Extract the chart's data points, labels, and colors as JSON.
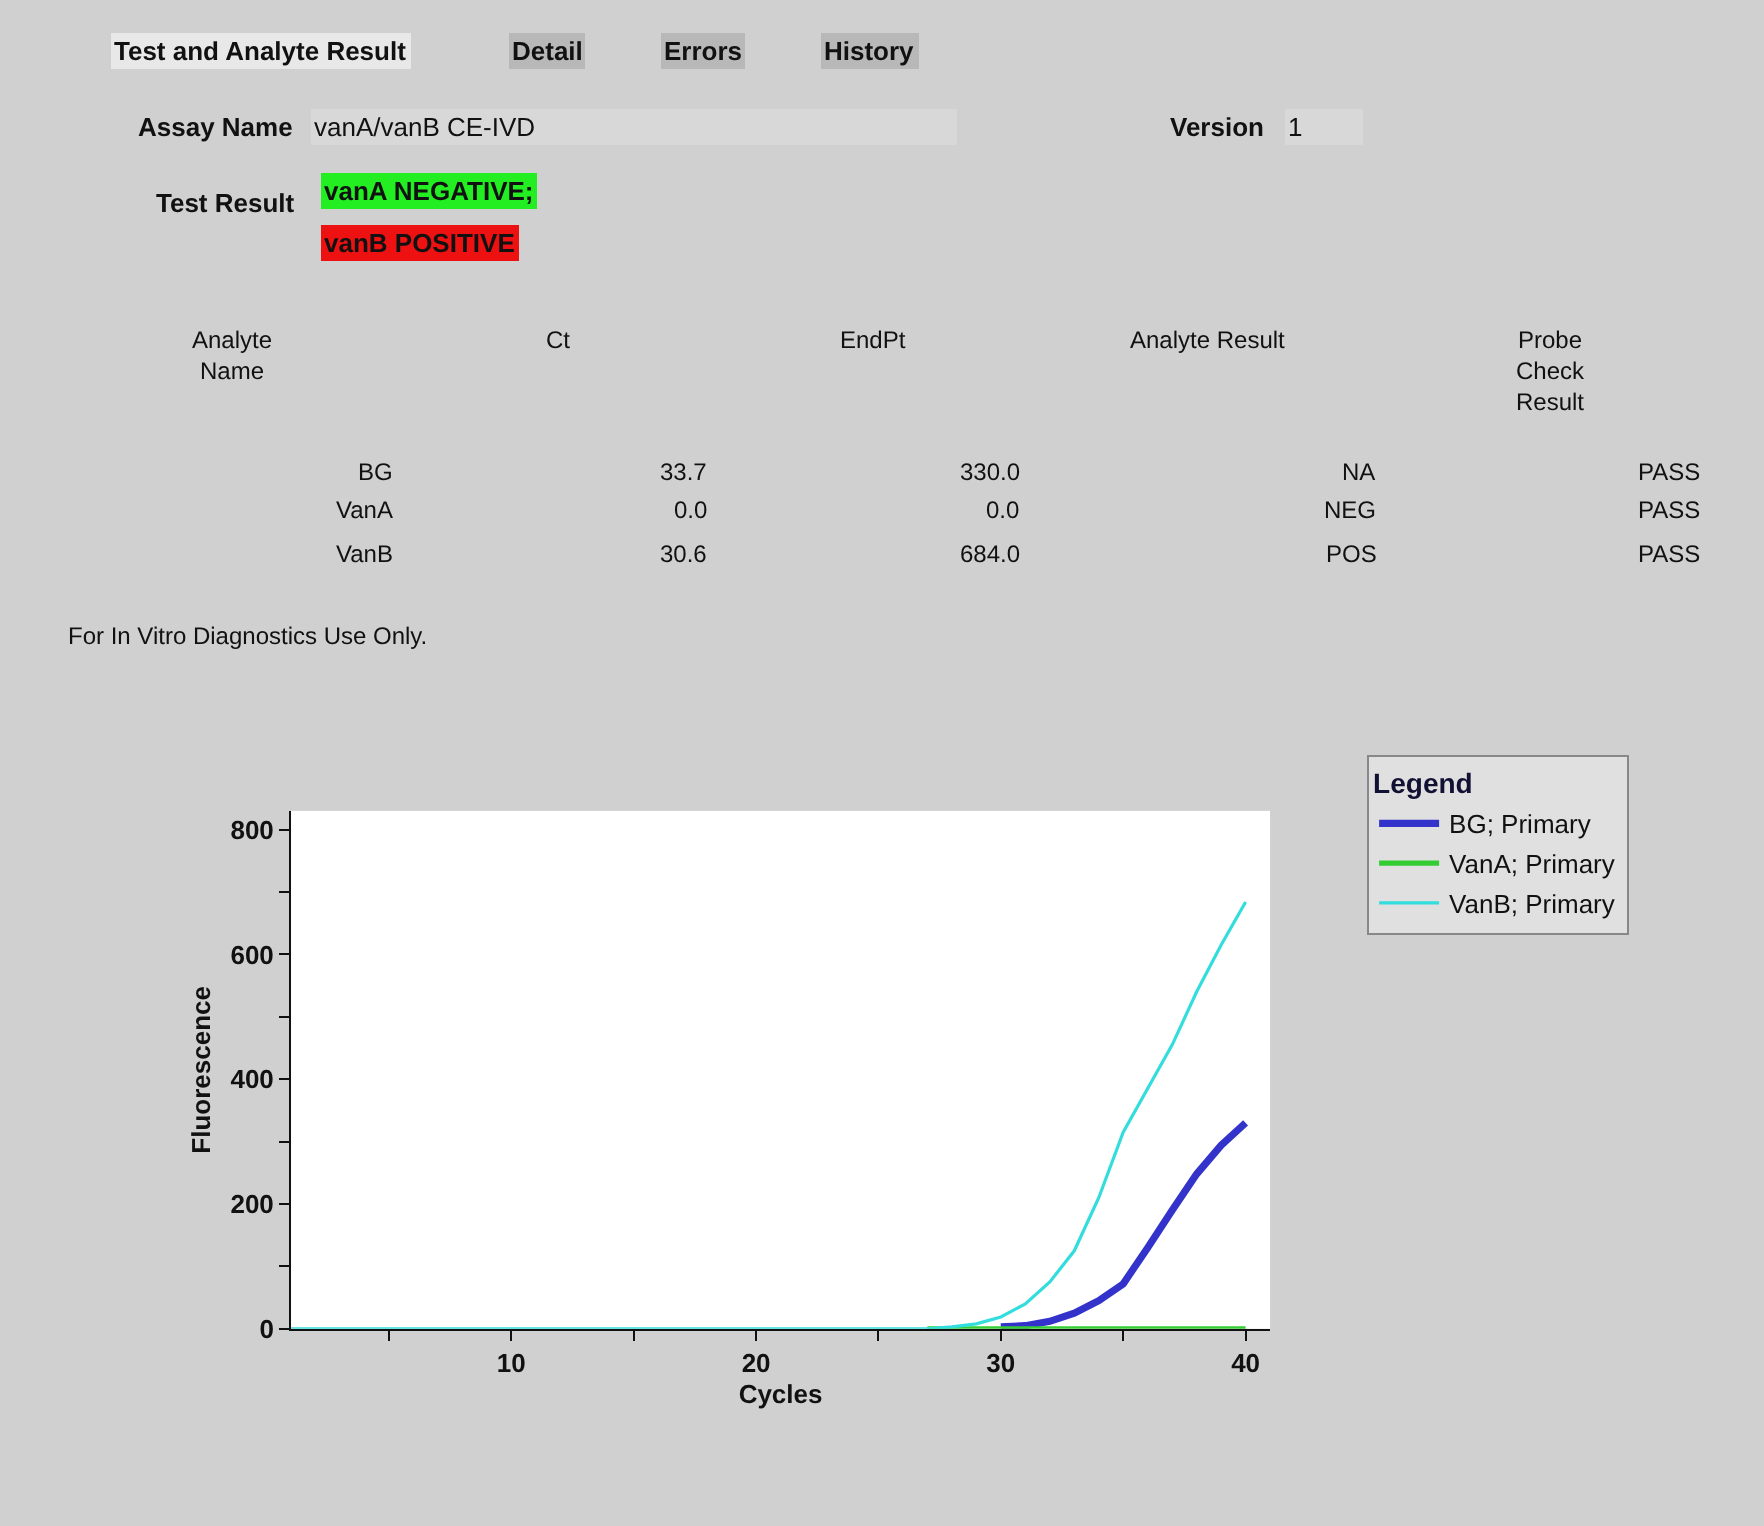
{
  "chart_data": [
    {
      "type": "other",
      "annotations": [
        "Test and Analyte Result",
        "Detail",
        "Errors",
        "History",
        "Assay Name",
        "vanA/vanB CE-IVD",
        "Version",
        "1",
        "Test Result",
        "vanA NEGATIVE;",
        "vanB POSITIVE",
        "Analyte Name",
        "Ct",
        "EndPt",
        "Analyte Result",
        "Probe Check Result",
        "BG",
        "33.7",
        "330.0",
        "NA",
        "PASS",
        "VanA",
        "0.0",
        "0.0",
        "NEG",
        "PASS",
        "VanB",
        "30.6",
        "684.0",
        "POS",
        "PASS",
        "For In Vitro Diagnostics Use Only."
      ]
    },
    {
      "type": "line",
      "xlabel": "Cycles",
      "ylabel": "Fluorescence",
      "xlim": [
        1,
        41
      ],
      "ylim": [
        0,
        830
      ],
      "xticks": [
        {
          "value": 5,
          "label": null
        },
        10,
        {
          "value": 15,
          "label": null
        },
        20,
        {
          "value": 25,
          "label": null
        },
        30,
        {
          "value": 35,
          "label": null
        },
        40
      ],
      "yticks": [
        0,
        {
          "value": 100,
          "label": null
        },
        200,
        {
          "value": 300,
          "label": null
        },
        400,
        {
          "value": 500,
          "label": null
        },
        600,
        {
          "value": 700,
          "label": null
        },
        800
      ],
      "grid": false,
      "legend": "top right",
      "legend_title": "Legend",
      "series": [
        {
          "name": "BG; Primary",
          "color": "#3333cc",
          "x": [
            30,
            31,
            32,
            33,
            34,
            35,
            36,
            37,
            38,
            39,
            40
          ],
          "values": [
            3,
            5,
            12,
            25,
            45,
            72,
            130,
            190,
            248,
            294,
            330
          ]
        },
        {
          "name": "VanA; Primary",
          "color": "#33cc33",
          "x": [
            27,
            40
          ],
          "values": [
            0,
            0
          ]
        },
        {
          "name": "VanB; Primary",
          "color": "#33dddd",
          "x": [
            1,
            27,
            28,
            29,
            30,
            31,
            32,
            33,
            34,
            35,
            36,
            37,
            38,
            39,
            40
          ],
          "values": [
            0,
            0,
            3,
            8,
            19,
            40,
            75,
            125,
            210,
            315,
            385,
            455,
            540,
            615,
            684
          ]
        }
      ]
    }
  ]
}
